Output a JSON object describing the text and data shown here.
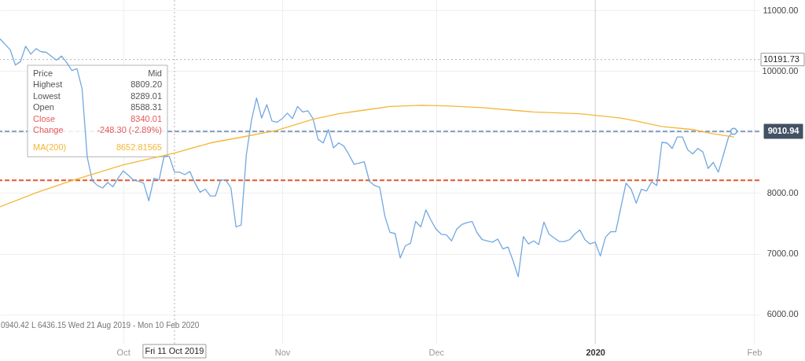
{
  "chart_data": {
    "type": "line",
    "xlim": [
      "2019-09-07",
      "2020-02-02"
    ],
    "xticks": [
      {
        "value": "2019-10-01",
        "label": "Oct"
      },
      {
        "value": "2019-11-01",
        "label": "Nov"
      },
      {
        "value": "2019-12-01",
        "label": "Dec"
      },
      {
        "value": "2020-01-01",
        "label": "2020"
      },
      {
        "value": "2020-02-01",
        "label": "Feb"
      }
    ],
    "ylim": [
      5520,
      11170
    ],
    "yticks": [
      {
        "value": 6000,
        "label": "6000.00"
      },
      {
        "value": 7000,
        "label": "7000.00"
      },
      {
        "value": 8000,
        "label": "8000.00"
      },
      {
        "value": 9000,
        "label": null
      },
      {
        "value": 10000,
        "label": "10000.00"
      },
      {
        "value": 11000,
        "label": "11000.00"
      }
    ],
    "grid": true,
    "series": [
      {
        "color": "#72a8e0",
        "x": [
          "2019-09-07",
          "2019-09-09",
          "2019-09-10",
          "2019-09-11",
          "2019-09-12",
          "2019-09-13",
          "2019-09-14",
          "2019-09-15",
          "2019-09-16",
          "2019-09-18",
          "2019-09-19",
          "2019-09-20",
          "2019-09-21",
          "2019-09-22",
          "2019-09-23",
          "2019-09-24",
          "2019-09-25",
          "2019-09-26",
          "2019-09-27",
          "2019-09-28",
          "2019-09-29",
          "2019-09-30",
          "2019-10-01",
          "2019-10-02",
          "2019-10-03",
          "2019-10-04",
          "2019-10-05",
          "2019-10-06",
          "2019-10-07",
          "2019-10-08",
          "2019-10-09",
          "2019-10-10",
          "2019-10-11",
          "2019-10-12",
          "2019-10-13",
          "2019-10-14",
          "2019-10-15",
          "2019-10-16",
          "2019-10-17",
          "2019-10-18",
          "2019-10-19",
          "2019-10-20",
          "2019-10-21",
          "2019-10-22",
          "2019-10-23",
          "2019-10-24",
          "2019-10-25",
          "2019-10-26",
          "2019-10-27",
          "2019-10-28",
          "2019-10-29",
          "2019-10-30",
          "2019-10-31",
          "2019-11-01",
          "2019-11-02",
          "2019-11-03",
          "2019-11-04",
          "2019-11-05",
          "2019-11-06",
          "2019-11-07",
          "2019-11-08",
          "2019-11-09",
          "2019-11-10",
          "2019-11-11",
          "2019-11-12",
          "2019-11-13",
          "2019-11-14",
          "2019-11-15",
          "2019-11-16",
          "2019-11-17",
          "2019-11-18",
          "2019-11-19",
          "2019-11-20",
          "2019-11-21",
          "2019-11-22",
          "2019-11-23",
          "2019-11-24",
          "2019-11-25",
          "2019-11-26",
          "2019-11-27",
          "2019-11-28",
          "2019-11-29",
          "2019-11-30",
          "2019-12-01",
          "2019-12-02",
          "2019-12-03",
          "2019-12-04",
          "2019-12-05",
          "2019-12-06",
          "2019-12-07",
          "2019-12-08",
          "2019-12-09",
          "2019-12-10",
          "2019-12-11",
          "2019-12-12",
          "2019-12-13",
          "2019-12-14",
          "2019-12-15",
          "2019-12-16",
          "2019-12-17",
          "2019-12-18",
          "2019-12-19",
          "2019-12-20",
          "2019-12-21",
          "2019-12-22",
          "2019-12-23",
          "2019-12-24",
          "2019-12-25",
          "2019-12-26",
          "2019-12-27",
          "2019-12-28",
          "2019-12-29",
          "2019-12-30",
          "2019-12-31",
          "2020-01-01",
          "2020-01-02",
          "2020-01-03",
          "2020-01-04",
          "2020-01-05",
          "2020-01-06",
          "2020-01-07",
          "2020-01-08",
          "2020-01-09",
          "2020-01-10",
          "2020-01-11",
          "2020-01-12",
          "2020-01-13",
          "2020-01-14",
          "2020-01-15",
          "2020-01-16",
          "2020-01-17",
          "2020-01-18",
          "2020-01-19",
          "2020-01-20",
          "2020-01-21",
          "2020-01-22",
          "2020-01-23",
          "2020-01-24",
          "2020-01-25",
          "2020-01-26",
          "2020-01-27",
          "2020-01-28"
        ],
        "values": [
          10530,
          10350,
          10100,
          10160,
          10410,
          10280,
          10370,
          10320,
          10310,
          10180,
          10250,
          10140,
          10010,
          10040,
          9710,
          8590,
          8200,
          8120,
          8080,
          8170,
          8100,
          8240,
          8360,
          8290,
          8210,
          8190,
          8160,
          7870,
          8240,
          8210,
          8610,
          8600,
          8340.01,
          8340,
          8300,
          8350,
          8160,
          8010,
          8060,
          7950,
          7950,
          8210,
          8210,
          8080,
          7440,
          7470,
          8620,
          9190,
          9560,
          9230,
          9450,
          9180,
          9160,
          9220,
          9310,
          9220,
          9420,
          9330,
          9350,
          9220,
          8880,
          8820,
          9040,
          8740,
          8820,
          8770,
          8630,
          8470,
          8490,
          8510,
          8190,
          8120,
          8090,
          7620,
          7350,
          7330,
          6930,
          7130,
          7170,
          7530,
          7440,
          7720,
          7550,
          7400,
          7320,
          7310,
          7210,
          7400,
          7480,
          7510,
          7530,
          7340,
          7230,
          7210,
          7190,
          7240,
          7080,
          7110,
          6880,
          6620,
          7280,
          7160,
          7210,
          7150,
          7520,
          7320,
          7260,
          7200,
          7200,
          7230,
          7320,
          7390,
          7230,
          7160,
          7190,
          6960,
          7270,
          7360,
          7360,
          7760,
          8160,
          8060,
          7830,
          8060,
          8030,
          8180,
          8120,
          8830,
          8820,
          8730,
          8920,
          8920,
          8710,
          8640,
          8730,
          8670,
          8400,
          8500,
          8340,
          8630,
          8920,
          9010.94
        ]
      },
      {
        "name": "MA(200)",
        "color": "#f5b638",
        "x": [
          "2019-09-07",
          "2019-09-14",
          "2019-09-21",
          "2019-10-01",
          "2019-10-11",
          "2019-10-18",
          "2019-10-25",
          "2019-10-31",
          "2019-11-07",
          "2019-11-12",
          "2019-11-17",
          "2019-11-22",
          "2019-11-28",
          "2019-12-03",
          "2019-12-10",
          "2019-12-17",
          "2019-12-20",
          "2019-12-29",
          "2020-01-06",
          "2020-01-09",
          "2020-01-14",
          "2020-01-20",
          "2020-01-24",
          "2020-01-28"
        ],
        "values": [
          7770,
          8000,
          8200,
          8460,
          8652.81565,
          8820,
          8930,
          9030,
          9210,
          9300,
          9360,
          9420,
          9440,
          9430,
          9400,
          9350,
          9330,
          9300,
          9230,
          9180,
          9090,
          9040,
          8970,
          8920
        ]
      },
      {
        "type": "scatter",
        "marker": "circle",
        "color": "#72a8e0",
        "x": [
          "2020-01-28"
        ],
        "values": [
          9010.94
        ]
      }
    ],
    "ref_lines": [
      {
        "axis": "x",
        "value": "2020-01-01",
        "color": "#d3d3d3",
        "line_style": "solid"
      },
      {
        "axis": "x",
        "value": "2019-10-11",
        "label": "Fri 11 Oct 2019",
        "color": "#b0b0b0",
        "line_style": "dotted"
      },
      {
        "axis": "y",
        "value": 10191.73,
        "label": "10191.73",
        "color": "#b0b0b0",
        "line_style": "dotted"
      },
      {
        "axis": "y",
        "value": 9010.94,
        "label": "9010.94",
        "color": "#86a2c8",
        "line_style": "dashed"
      },
      {
        "axis": "y",
        "value": 8205,
        "color": "#e4572e",
        "line_style": "dashed"
      }
    ],
    "annotations": [
      "Price",
      "Mid",
      "Highest",
      "8809.20",
      "Lowest",
      "8289.01",
      "Open",
      "8588.31",
      "Close",
      "8340.01",
      "Change",
      "-248.30 (-2.89%)",
      "8652.81565",
      "0940.42   L 6436.15   Wed 21 Aug 2019 - Mon 10 Feb 2020"
    ]
  }
}
